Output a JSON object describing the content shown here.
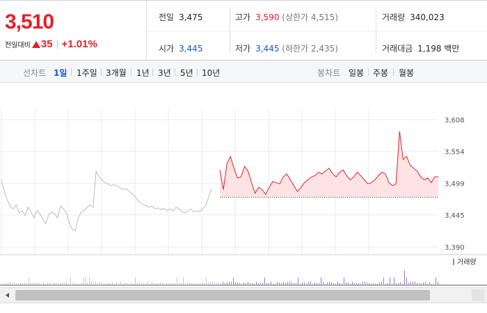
{
  "summary": {
    "price": "3,510",
    "change_label": "전일대비",
    "change_value": "35",
    "change_pct": "+1.01%"
  },
  "stats": {
    "prev_close": {
      "label": "전일",
      "value": "3,475"
    },
    "open": {
      "label": "시가",
      "value": "3,445"
    },
    "high": {
      "label": "고가",
      "value": "3,590",
      "sub_label": "(상한가",
      "sub_value": "4,515)"
    },
    "low": {
      "label": "저가",
      "value": "3,445",
      "sub_label": "(하한가",
      "sub_value": "2,435)"
    },
    "volume": {
      "label": "거래량",
      "value": "340,023"
    },
    "amount": {
      "label": "거래대금",
      "value": "1,198 백만"
    }
  },
  "toolbar": {
    "line_label": "선차트",
    "periods": [
      "1일",
      "1주일",
      "3개월",
      "1년",
      "3년",
      "5년",
      "10년"
    ],
    "selected_period": "1일",
    "candle_label": "봉차트",
    "candles": [
      "일봉",
      "주봉",
      "월봉"
    ]
  },
  "chart": {
    "y_ticks": [
      "3,608",
      "3,554",
      "3,499",
      "3,445",
      "3,390"
    ],
    "volume_legend": "거래량",
    "colors": {
      "up": "#e4202c",
      "down": "#1a56c9",
      "prev_day": "#bbbbbb",
      "volume": "#8a7fd0"
    }
  },
  "chart_data": {
    "type": "line",
    "title": "",
    "xlabel": "",
    "ylabel": "",
    "ylim": [
      3390,
      3608
    ],
    "baseline": 3475,
    "series": [
      {
        "values": [
          3505,
          3485,
          3470,
          3460,
          3455,
          3462,
          3448,
          3452,
          3444,
          3458,
          3450,
          3440,
          3452,
          3447,
          3438,
          3430,
          3445,
          3450,
          3446,
          3440,
          3460,
          3455,
          3448,
          3430,
          3420,
          3418,
          3440,
          3450,
          3452,
          3458,
          3462,
          3458,
          3520,
          3510,
          3505,
          3500,
          3498,
          3495,
          3497,
          3494,
          3492,
          3488,
          3490,
          3486,
          3482,
          3478,
          3470,
          3465,
          3462,
          3460,
          3458,
          3460,
          3455,
          3457,
          3454,
          3456,
          3452,
          3455,
          3452,
          3458,
          3455,
          3450,
          3448,
          3452,
          3455,
          3450,
          3452,
          3450,
          3455,
          3460,
          3475,
          3490
        ]
      },
      {
        "values": [
          3522,
          3488,
          3532,
          3545,
          3525,
          3508,
          3510,
          3528,
          3520,
          3500,
          3482,
          3492,
          3488,
          3480,
          3492,
          3502,
          3500,
          3498,
          3510,
          3515,
          3505,
          3495,
          3485,
          3492,
          3500,
          3505,
          3510,
          3512,
          3518,
          3515,
          3520,
          3525,
          3515,
          3510,
          3518,
          3522,
          3512,
          3505,
          3510,
          3518,
          3512,
          3505,
          3498,
          3500,
          3505,
          3512,
          3518,
          3515,
          3500,
          3495,
          3498,
          3588,
          3540,
          3545,
          3530,
          3525,
          3520,
          3510,
          3505,
          3508,
          3500,
          3510,
          3510
        ]
      }
    ]
  }
}
